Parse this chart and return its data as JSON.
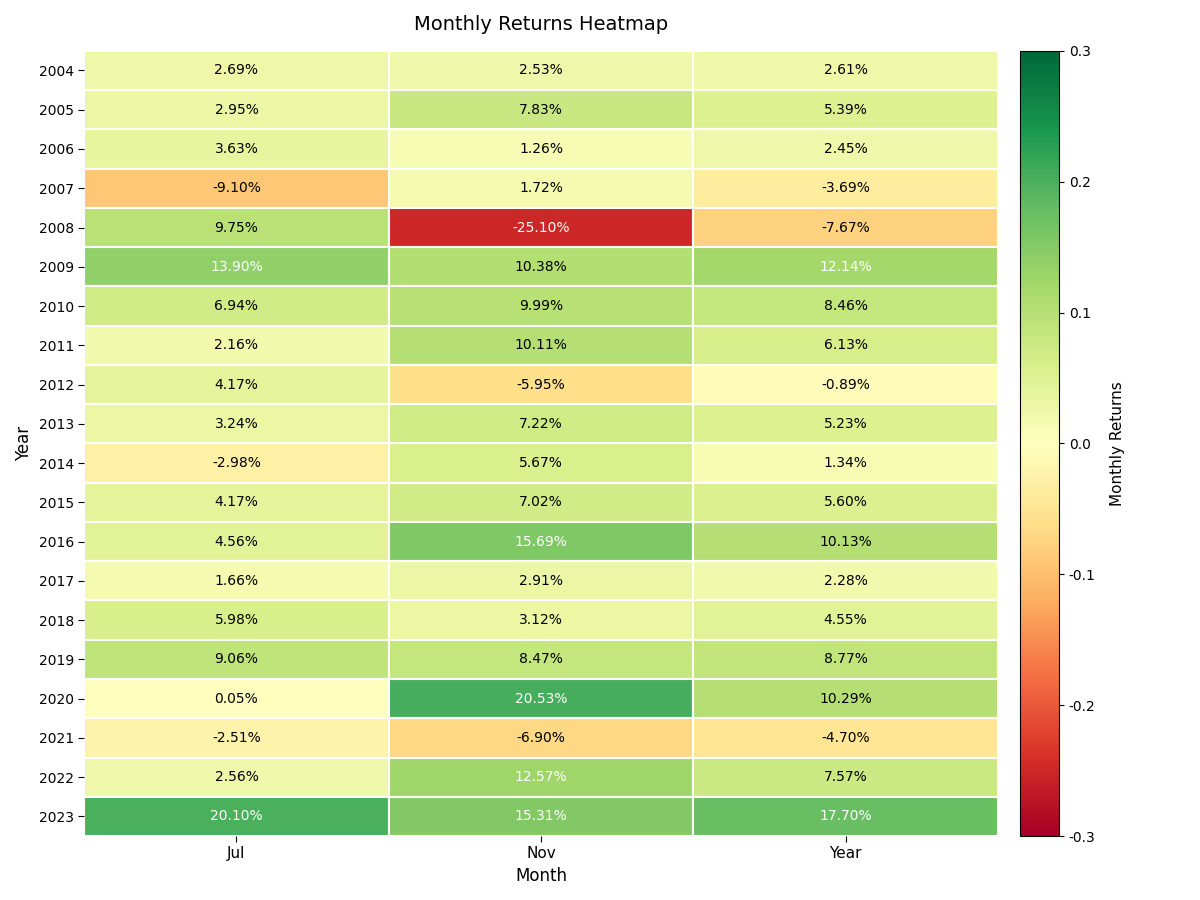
{
  "title": "Monthly Returns Heatmap",
  "xlabel": "Month",
  "ylabel": "Year",
  "colorbar_label": "Monthly Returns",
  "columns": [
    "Jul",
    "Nov",
    "Year"
  ],
  "years": [
    2004,
    2005,
    2006,
    2007,
    2008,
    2009,
    2010,
    2011,
    2012,
    2013,
    2014,
    2015,
    2016,
    2017,
    2018,
    2019,
    2020,
    2021,
    2022,
    2023
  ],
  "values": [
    [
      2.69,
      2.53,
      2.61
    ],
    [
      2.95,
      7.83,
      5.39
    ],
    [
      3.63,
      1.26,
      2.45
    ],
    [
      -9.1,
      1.72,
      -3.69
    ],
    [
      9.75,
      -25.1,
      -7.67
    ],
    [
      13.9,
      10.38,
      12.14
    ],
    [
      6.94,
      9.99,
      8.46
    ],
    [
      2.16,
      10.11,
      6.13
    ],
    [
      4.17,
      -5.95,
      -0.89
    ],
    [
      3.24,
      7.22,
      5.23
    ],
    [
      -2.98,
      5.67,
      1.34
    ],
    [
      4.17,
      7.02,
      5.6
    ],
    [
      4.56,
      15.69,
      10.13
    ],
    [
      1.66,
      2.91,
      2.28
    ],
    [
      5.98,
      3.12,
      4.55
    ],
    [
      9.06,
      8.47,
      8.77
    ],
    [
      0.05,
      20.53,
      10.29
    ],
    [
      -2.51,
      -6.9,
      -4.7
    ],
    [
      2.56,
      12.57,
      7.57
    ],
    [
      20.1,
      15.31,
      17.7
    ]
  ],
  "vmin": -0.3,
  "vmax": 0.3,
  "figsize": [
    12,
    9
  ],
  "dpi": 100,
  "white_text_threshold": 12.0
}
